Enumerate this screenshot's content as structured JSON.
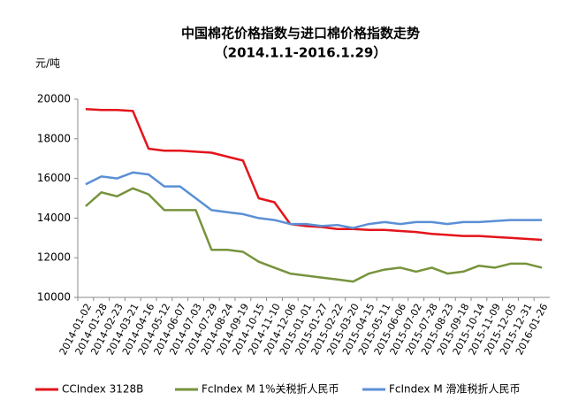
{
  "chart_data": {
    "type": "line",
    "title": "中国棉花价格指数与进口棉价格指数走势",
    "subtitle": "（2014.1.1-2016.1.29）",
    "y_label": "元/吨",
    "categories": [
      "2014-01-02",
      "2014-01-28",
      "2014-02-23",
      "2014-03-21",
      "2014-04-16",
      "2014-05-12",
      "2014-06-07",
      "2014-07-03",
      "2014-07-29",
      "2014-08-24",
      "2014-09-19",
      "2014-10-15",
      "2014-11-10",
      "2014-12-06",
      "2015-01-01",
      "2015-01-27",
      "2015-02-22",
      "2015-03-20",
      "2015-04-15",
      "2015-05-11",
      "2015-06-06",
      "2015-07-02",
      "2015-07-28",
      "2015-08-23",
      "2015-09-18",
      "2015-10-14",
      "2015-11-09",
      "2015-12-05",
      "2015-12-31",
      "2016-01-26"
    ],
    "series": [
      {
        "name": "CCIndex 3128B",
        "color": "#e3141b",
        "values": [
          19500,
          19450,
          19450,
          19400,
          17500,
          17400,
          17400,
          17350,
          17300,
          17100,
          16900,
          15000,
          14800,
          13700,
          13600,
          13550,
          13450,
          13450,
          13400,
          13400,
          13350,
          13300,
          13200,
          13150,
          13100,
          13100,
          13050,
          13000,
          12950,
          12900
        ]
      },
      {
        "name": "FcIndex M 1%关税折人民币",
        "color": "#77933c",
        "values": [
          14600,
          15300,
          15100,
          15500,
          15200,
          14400,
          14400,
          14400,
          12400,
          12400,
          12300,
          11800,
          11500,
          11200,
          11100,
          11000,
          10900,
          10800,
          11200,
          11400,
          11500,
          11300,
          11500,
          11200,
          11300,
          11600,
          11500,
          11700,
          11700,
          11500
        ]
      },
      {
        "name": "FcIndex M 滑准税折人民币",
        "color": "#5b8fd5",
        "values": [
          15700,
          16100,
          16000,
          16300,
          16200,
          15600,
          15600,
          15000,
          14400,
          14300,
          14200,
          14000,
          13900,
          13700,
          13700,
          13600,
          13650,
          13500,
          13700,
          13800,
          13700,
          13800,
          13800,
          13700,
          13800,
          13800,
          13850,
          13900,
          13900,
          13900
        ]
      }
    ],
    "ylim": [
      10000,
      20000
    ],
    "yticks": [
      10000,
      12000,
      14000,
      16000,
      18000,
      20000
    ],
    "grid": false,
    "legend": "bottom"
  }
}
